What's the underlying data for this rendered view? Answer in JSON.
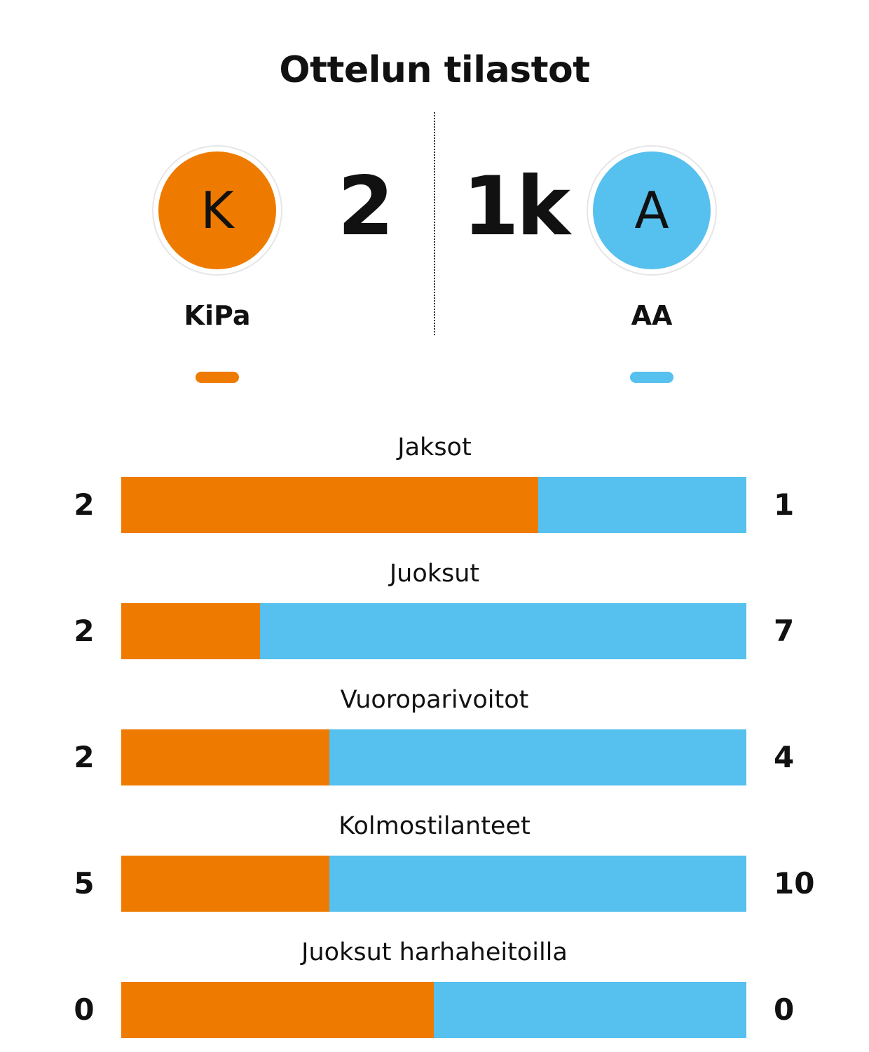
{
  "title": "Ottelun tilastot",
  "colors": {
    "home": "#ee7b00",
    "away": "#56c0ef"
  },
  "home": {
    "logo_letter": "K",
    "score": "2",
    "name": "KiPa"
  },
  "away": {
    "logo_letter": "A",
    "score": "1k",
    "name": "AA"
  },
  "chart_data": {
    "type": "bar",
    "orientation": "horizontal-stacked-share",
    "series": [
      {
        "name": "KiPa"
      },
      {
        "name": "AA"
      }
    ],
    "rows": [
      {
        "label": "Jaksot",
        "home": 2,
        "away": 1
      },
      {
        "label": "Juoksut",
        "home": 2,
        "away": 7
      },
      {
        "label": "Vuoroparivoitot",
        "home": 2,
        "away": 4
      },
      {
        "label": "Kolmostilanteet",
        "home": 5,
        "away": 10
      },
      {
        "label": "Juoksut harhaheitoilla",
        "home": 0,
        "away": 0
      }
    ]
  }
}
